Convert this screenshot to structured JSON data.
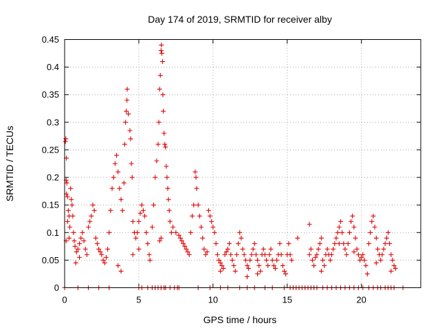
{
  "chart_data": {
    "type": "scatter",
    "title": "Day 174 of 2019, SRMTID for receiver alby",
    "xlabel": "GPS time / hours",
    "ylabel": "SRMTID / TECUs",
    "xlim": [
      0,
      24
    ],
    "ylim": [
      0,
      0.45
    ],
    "x_ticks": [
      0,
      5,
      10,
      15,
      20
    ],
    "x_tick_labels": [
      "0",
      "5",
      "10",
      "15",
      "20"
    ],
    "y_ticks": [
      0,
      0.05,
      0.1,
      0.15,
      0.2,
      0.25,
      0.3,
      0.35,
      0.4,
      0.45
    ],
    "y_tick_labels": [
      "0",
      "0.05",
      "0.1",
      "0.15",
      "0.2",
      "0.25",
      "0.3",
      "0.35",
      "0.4",
      "0.45"
    ],
    "grid": true,
    "marker": "+",
    "marker_color": "#e00000",
    "series": [
      {
        "name": "SRMTID",
        "points": [
          [
            0.05,
            0.265
          ],
          [
            0.08,
            0.27
          ],
          [
            0.12,
            0.235
          ],
          [
            0.1,
            0.195
          ],
          [
            0.15,
            0.19
          ],
          [
            0.12,
            0.17
          ],
          [
            0.2,
            0.165
          ],
          [
            0.25,
            0.14
          ],
          [
            0.3,
            0.13
          ],
          [
            0.2,
            0.12
          ],
          [
            0.35,
            0.11
          ],
          [
            0.4,
            0.18
          ],
          [
            0.45,
            0.16
          ],
          [
            0.5,
            0.15
          ],
          [
            0.55,
            0.13
          ],
          [
            0.6,
            0.1
          ],
          [
            0.3,
            0.09
          ],
          [
            0.1,
            0.085
          ],
          [
            0.65,
            0.085
          ],
          [
            0.7,
            0.075
          ],
          [
            0.8,
            0.065
          ],
          [
            0.9,
            0.07
          ],
          [
            1.0,
            0.08
          ],
          [
            1.1,
            0.09
          ],
          [
            1.2,
            0.1
          ],
          [
            1.3,
            0.085
          ],
          [
            1.4,
            0.07
          ],
          [
            1.5,
            0.06
          ],
          [
            0.75,
            0.045
          ],
          [
            1.0,
            0.055
          ],
          [
            1.6,
            0.11
          ],
          [
            1.7,
            0.12
          ],
          [
            1.8,
            0.13
          ],
          [
            1.9,
            0.15
          ],
          [
            2.0,
            0.14
          ],
          [
            2.1,
            0.09
          ],
          [
            2.2,
            0.08
          ],
          [
            2.3,
            0.07
          ],
          [
            2.4,
            0.065
          ],
          [
            2.5,
            0.06
          ],
          [
            2.6,
            0.05
          ],
          [
            2.7,
            0.045
          ],
          [
            2.8,
            0.055
          ],
          [
            2.9,
            0.07
          ],
          [
            3.0,
            0.1
          ],
          [
            3.1,
            0.14
          ],
          [
            3.2,
            0.18
          ],
          [
            3.3,
            0.2
          ],
          [
            3.4,
            0.225
          ],
          [
            3.5,
            0.24
          ],
          [
            3.6,
            0.21
          ],
          [
            3.7,
            0.18
          ],
          [
            3.8,
            0.16
          ],
          [
            3.9,
            0.14
          ],
          [
            4.0,
            0.19
          ],
          [
            4.05,
            0.26
          ],
          [
            4.1,
            0.3
          ],
          [
            4.15,
            0.32
          ],
          [
            4.2,
            0.34
          ],
          [
            4.22,
            0.36
          ],
          [
            4.3,
            0.315
          ],
          [
            4.4,
            0.285
          ],
          [
            4.45,
            0.27
          ],
          [
            4.5,
            0.225
          ],
          [
            4.55,
            0.2
          ],
          [
            4.6,
            0.12
          ],
          [
            4.7,
            0.1
          ],
          [
            4.8,
            0.09
          ],
          [
            4.9,
            0.1
          ],
          [
            5.0,
            0.12
          ],
          [
            5.1,
            0.135
          ],
          [
            5.2,
            0.15
          ],
          [
            5.3,
            0.14
          ],
          [
            5.4,
            0.13
          ],
          [
            5.5,
            0.1
          ],
          [
            5.6,
            0.08
          ],
          [
            5.7,
            0.06
          ],
          [
            5.75,
            0.05
          ],
          [
            3.6,
            0.04
          ],
          [
            3.8,
            0.03
          ],
          [
            4.6,
            0.06
          ],
          [
            5.0,
            0.07
          ],
          [
            5.9,
            0.11
          ],
          [
            6.0,
            0.15
          ],
          [
            6.1,
            0.2
          ],
          [
            6.2,
            0.23
          ],
          [
            6.3,
            0.26
          ],
          [
            6.35,
            0.3
          ],
          [
            6.4,
            0.36
          ],
          [
            6.45,
            0.385
          ],
          [
            6.5,
            0.43
          ],
          [
            6.52,
            0.44
          ],
          [
            6.55,
            0.425
          ],
          [
            6.6,
            0.41
          ],
          [
            6.62,
            0.35
          ],
          [
            6.65,
            0.32
          ],
          [
            6.7,
            0.28
          ],
          [
            6.75,
            0.26
          ],
          [
            6.8,
            0.255
          ],
          [
            6.85,
            0.22
          ],
          [
            6.9,
            0.2
          ],
          [
            6.95,
            0.18
          ],
          [
            7.0,
            0.16
          ],
          [
            7.05,
            0.14
          ],
          [
            7.1,
            0.12
          ],
          [
            7.2,
            0.1
          ],
          [
            6.5,
            0.09
          ],
          [
            6.4,
            0.085
          ],
          [
            7.3,
            0.11
          ],
          [
            7.5,
            0.1
          ],
          [
            7.7,
            0.095
          ],
          [
            7.8,
            0.09
          ],
          [
            7.9,
            0.085
          ],
          [
            8.0,
            0.08
          ],
          [
            8.1,
            0.075
          ],
          [
            8.2,
            0.07
          ],
          [
            8.3,
            0.065
          ],
          [
            8.4,
            0.06
          ],
          [
            8.5,
            0.1
          ],
          [
            8.6,
            0.13
          ],
          [
            8.7,
            0.15
          ],
          [
            8.8,
            0.21
          ],
          [
            8.85,
            0.2
          ],
          [
            8.9,
            0.18
          ],
          [
            9.0,
            0.15
          ],
          [
            9.1,
            0.13
          ],
          [
            9.2,
            0.11
          ],
          [
            9.3,
            0.09
          ],
          [
            9.4,
            0.07
          ],
          [
            9.5,
            0.06
          ],
          [
            9.6,
            0.065
          ],
          [
            9.7,
            0.14
          ],
          [
            9.8,
            0.13
          ],
          [
            9.9,
            0.12
          ],
          [
            10.0,
            0.11
          ],
          [
            10.1,
            0.1
          ],
          [
            10.2,
            0.08
          ],
          [
            10.3,
            0.06
          ],
          [
            10.4,
            0.05
          ],
          [
            10.5,
            0.045
          ],
          [
            10.6,
            0.04
          ],
          [
            10.7,
            0.035
          ],
          [
            10.8,
            0.06
          ],
          [
            10.9,
            0.065
          ],
          [
            11.0,
            0.07
          ],
          [
            11.1,
            0.08
          ],
          [
            11.2,
            0.06
          ],
          [
            11.3,
            0.05
          ],
          [
            11.4,
            0.04
          ],
          [
            11.5,
            0.03
          ],
          [
            11.6,
            0.06
          ],
          [
            11.7,
            0.08
          ],
          [
            11.8,
            0.1
          ],
          [
            11.9,
            0.09
          ],
          [
            12.0,
            0.07
          ],
          [
            12.1,
            0.06
          ],
          [
            12.2,
            0.05
          ],
          [
            12.3,
            0.04
          ],
          [
            12.4,
            0.035
          ],
          [
            12.5,
            0.05
          ],
          [
            12.6,
            0.06
          ],
          [
            12.7,
            0.07
          ],
          [
            12.8,
            0.08
          ],
          [
            12.9,
            0.06
          ],
          [
            13.0,
            0.05
          ],
          [
            13.1,
            0.04
          ],
          [
            13.2,
            0.03
          ],
          [
            13.3,
            0.06
          ],
          [
            13.4,
            0.07
          ],
          [
            13.5,
            0.06
          ],
          [
            13.6,
            0.05
          ],
          [
            13.7,
            0.04
          ],
          [
            13.8,
            0.06
          ],
          [
            13.9,
            0.07
          ],
          [
            14.0,
            0.05
          ],
          [
            14.1,
            0.04
          ],
          [
            14.2,
            0.035
          ],
          [
            14.3,
            0.05
          ],
          [
            14.4,
            0.06
          ],
          [
            14.5,
            0.08
          ],
          [
            14.6,
            0.06
          ],
          [
            14.7,
            0.04
          ],
          [
            14.8,
            0.03
          ],
          [
            14.9,
            0.025
          ],
          [
            15.0,
            0.06
          ],
          [
            15.1,
            0.08
          ],
          [
            15.2,
            0.06
          ],
          [
            15.3,
            0.05
          ],
          [
            12.3,
            0.02
          ],
          [
            13.0,
            0.025
          ],
          [
            10.5,
            0.03
          ],
          [
            15.7,
            0.09
          ],
          [
            16.5,
            0.06
          ],
          [
            16.6,
            0.07
          ],
          [
            16.7,
            0.05
          ],
          [
            16.8,
            0.04
          ],
          [
            16.9,
            0.055
          ],
          [
            17.0,
            0.06
          ],
          [
            17.1,
            0.07
          ],
          [
            17.2,
            0.08
          ],
          [
            17.3,
            0.09
          ],
          [
            17.4,
            0.05
          ],
          [
            17.5,
            0.04
          ],
          [
            17.6,
            0.06
          ],
          [
            17.7,
            0.07
          ],
          [
            17.8,
            0.06
          ],
          [
            17.9,
            0.05
          ],
          [
            18.0,
            0.06
          ],
          [
            18.1,
            0.07
          ],
          [
            18.2,
            0.08
          ],
          [
            18.3,
            0.09
          ],
          [
            18.4,
            0.1
          ],
          [
            18.5,
            0.11
          ],
          [
            18.6,
            0.12
          ],
          [
            18.7,
            0.1
          ],
          [
            18.8,
            0.08
          ],
          [
            18.9,
            0.07
          ],
          [
            19.0,
            0.06
          ],
          [
            19.1,
            0.08
          ],
          [
            19.2,
            0.1
          ],
          [
            19.3,
            0.12
          ],
          [
            19.4,
            0.13
          ],
          [
            19.5,
            0.11
          ],
          [
            19.6,
            0.09
          ],
          [
            19.7,
            0.07
          ],
          [
            19.8,
            0.06
          ],
          [
            19.9,
            0.05
          ],
          [
            20.0,
            0.055
          ],
          [
            20.1,
            0.06
          ],
          [
            20.2,
            0.05
          ],
          [
            20.3,
            0.04
          ],
          [
            20.4,
            0.025
          ],
          [
            20.5,
            0.08
          ],
          [
            20.6,
            0.1
          ],
          [
            20.7,
            0.12
          ],
          [
            20.8,
            0.13
          ],
          [
            20.9,
            0.11
          ],
          [
            21.0,
            0.09
          ],
          [
            21.1,
            0.07
          ],
          [
            21.2,
            0.06
          ],
          [
            21.3,
            0.05
          ],
          [
            21.4,
            0.06
          ],
          [
            21.5,
            0.07
          ],
          [
            21.6,
            0.08
          ],
          [
            21.7,
            0.09
          ],
          [
            21.8,
            0.1
          ],
          [
            21.9,
            0.08
          ],
          [
            22.0,
            0.06
          ],
          [
            22.1,
            0.05
          ],
          [
            22.2,
            0.04
          ],
          [
            22.3,
            0.035
          ],
          [
            16.5,
            0.115
          ],
          [
            18.5,
            0.08
          ],
          [
            19.5,
            0.065
          ],
          [
            21.0,
            0.045
          ],
          [
            22.0,
            0.03
          ],
          [
            17.3,
            0.03
          ],
          [
            0,
            0
          ],
          [
            0.9,
            0
          ],
          [
            1.6,
            0
          ],
          [
            2.3,
            0
          ],
          [
            3.0,
            0
          ],
          [
            5.0,
            0
          ],
          [
            5.2,
            0
          ],
          [
            5.6,
            0
          ],
          [
            5.9,
            0
          ],
          [
            6.1,
            0
          ],
          [
            6.3,
            0
          ],
          [
            6.5,
            0
          ],
          [
            6.7,
            0
          ],
          [
            6.8,
            0
          ],
          [
            7.1,
            0
          ],
          [
            7.4,
            0
          ],
          [
            7.6,
            0
          ],
          [
            7.7,
            0
          ],
          [
            9.0,
            0
          ],
          [
            9.8,
            0
          ],
          [
            10.5,
            0
          ],
          [
            11.0,
            0
          ],
          [
            11.8,
            0
          ],
          [
            12.3,
            0
          ],
          [
            12.8,
            0
          ],
          [
            13.5,
            0
          ],
          [
            14.0,
            0
          ],
          [
            14.8,
            0
          ],
          [
            15.2,
            0
          ],
          [
            15.4,
            0
          ],
          [
            15.6,
            0
          ],
          [
            15.8,
            0
          ],
          [
            16.0,
            0
          ],
          [
            16.2,
            0
          ],
          [
            16.4,
            0
          ],
          [
            16.6,
            0
          ],
          [
            16.8,
            0
          ],
          [
            17.0,
            0
          ],
          [
            17.4,
            0
          ],
          [
            17.7,
            0
          ],
          [
            18.0,
            0
          ],
          [
            18.3,
            0
          ],
          [
            18.6,
            0
          ],
          [
            18.9,
            0
          ],
          [
            19.2,
            0
          ],
          [
            19.5,
            0
          ],
          [
            19.8,
            0
          ],
          [
            20.1,
            0
          ],
          [
            20.5,
            0
          ],
          [
            20.8,
            0
          ],
          [
            21.1,
            0
          ],
          [
            21.3,
            0
          ],
          [
            21.6,
            0
          ],
          [
            21.8,
            0
          ],
          [
            22.0,
            0
          ],
          [
            22.2,
            0
          ],
          [
            22.8,
            0
          ]
        ]
      }
    ]
  }
}
